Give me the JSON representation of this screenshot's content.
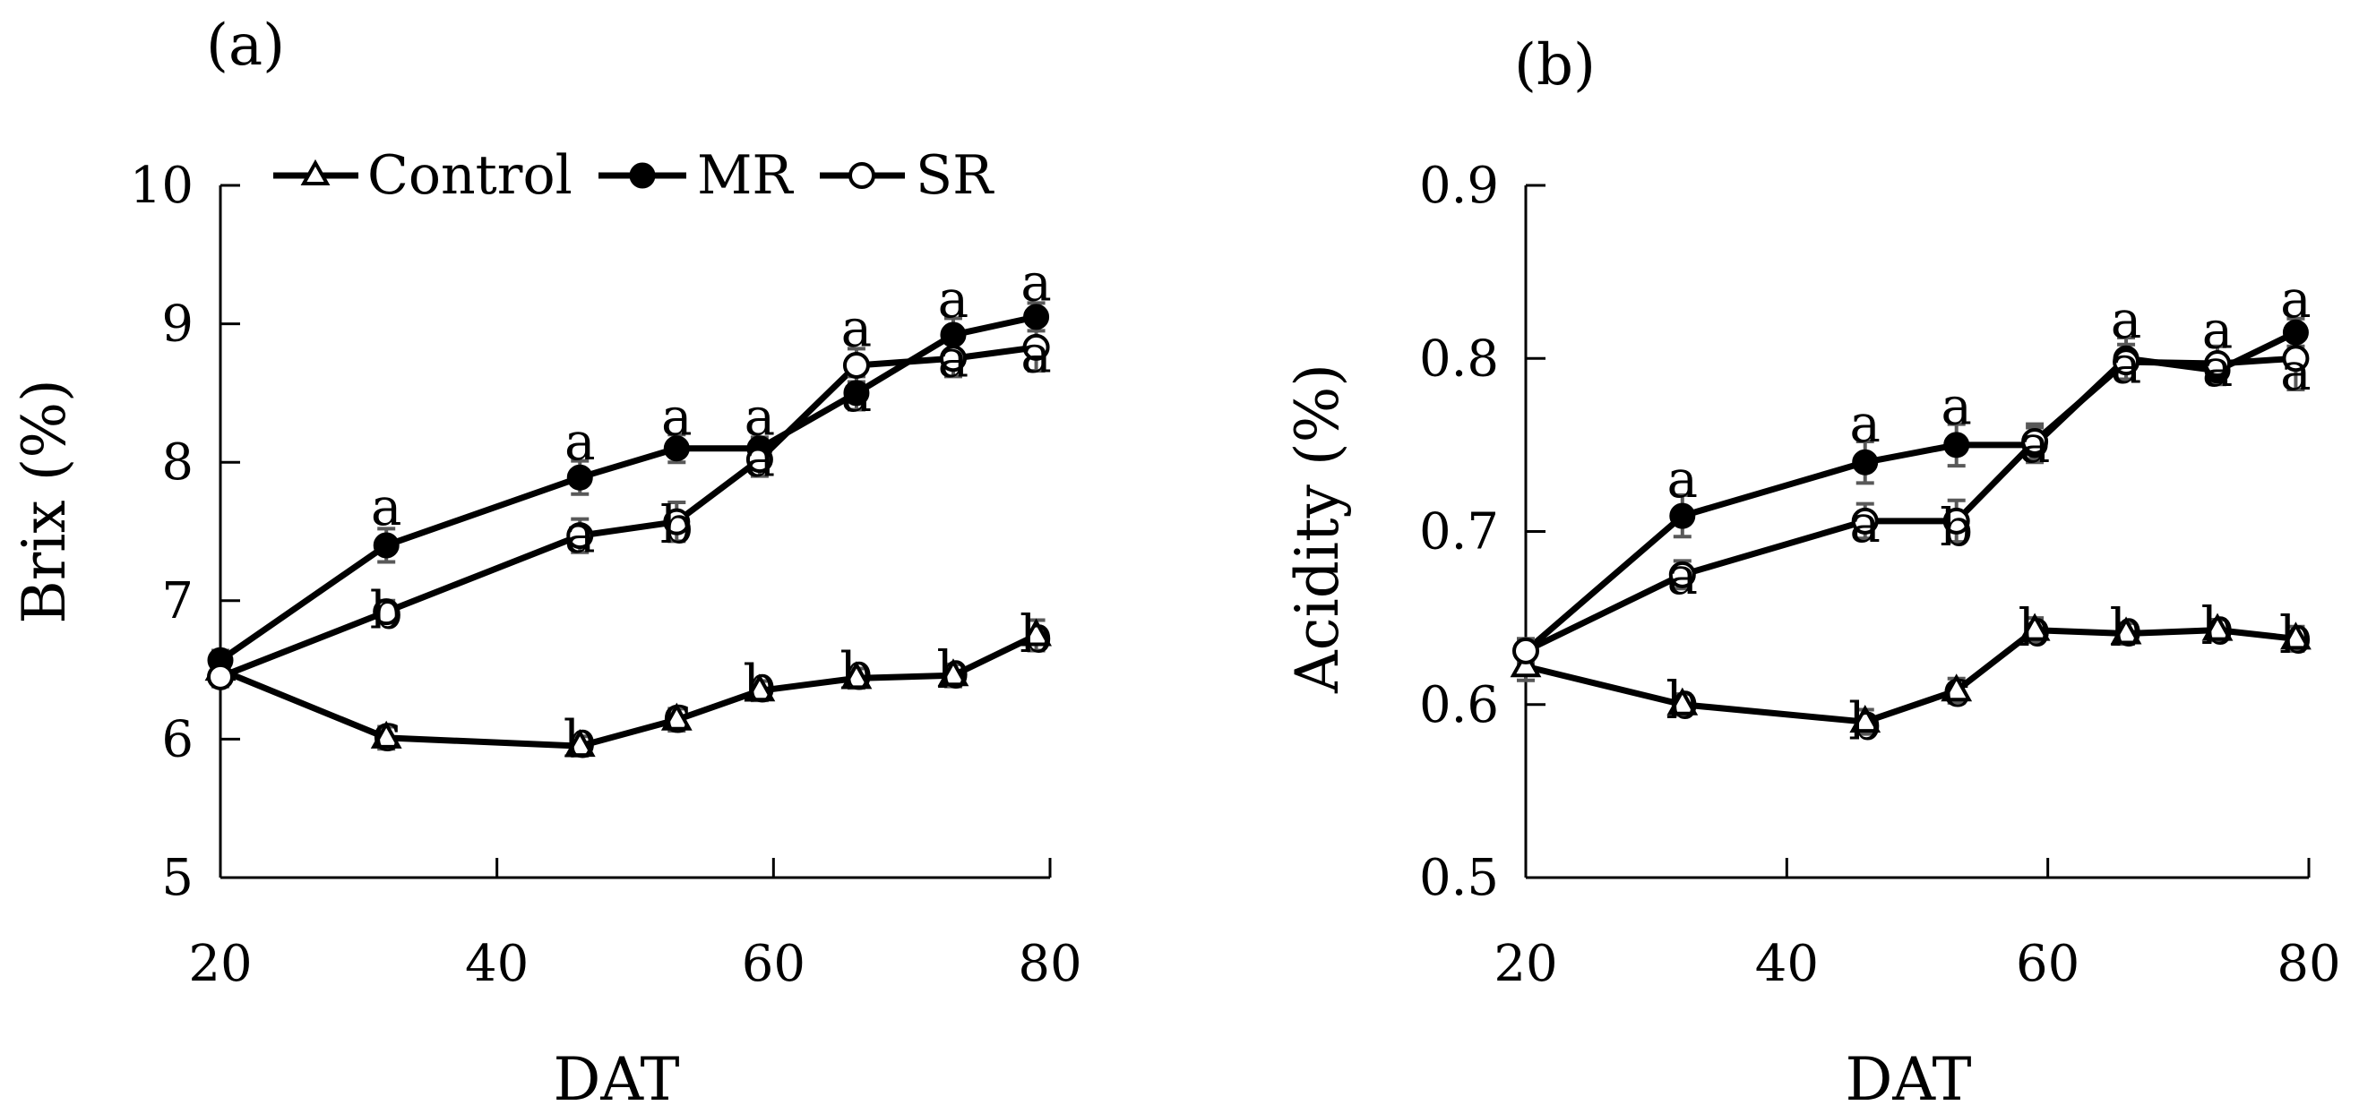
{
  "legend": {
    "entries": [
      {
        "name": "Control",
        "marker": "open-triangle"
      },
      {
        "name": "MR",
        "marker": "filled-circle"
      },
      {
        "name": "SR",
        "marker": "open-circle"
      }
    ]
  },
  "colors": {
    "line": "#000000",
    "error_bar": "#595959",
    "background": "#ffffff"
  },
  "chart_data": [
    {
      "type": "line",
      "panel_label": "(a)",
      "xlabel": "DAT",
      "ylabel": "Brix (%)",
      "xlim": [
        20,
        80
      ],
      "ylim": [
        5,
        10
      ],
      "x_ticks": [
        20,
        40,
        60,
        80
      ],
      "y_ticks": [
        5,
        6,
        7,
        8,
        9,
        10
      ],
      "x_tick_labels": [
        "20",
        "40",
        "60",
        "80"
      ],
      "y_tick_labels": [
        "5",
        "6",
        "7",
        "8",
        "9",
        "10"
      ],
      "series": [
        {
          "name": "Control",
          "x": [
            20,
            32,
            46,
            53,
            59,
            66,
            73,
            79
          ],
          "values": [
            6.5,
            6.01,
            5.95,
            6.14,
            6.35,
            6.44,
            6.46,
            6.75
          ],
          "errors": [
            0.08,
            0.08,
            0.07,
            0.08,
            0.07,
            0.07,
            0.08,
            0.11
          ]
        },
        {
          "name": "MR",
          "x": [
            20,
            32,
            46,
            53,
            59,
            66,
            73,
            79
          ],
          "values": [
            6.57,
            7.4,
            7.89,
            8.1,
            8.1,
            8.5,
            8.92,
            9.05
          ],
          "errors": [
            0.07,
            0.12,
            0.12,
            0.1,
            0.08,
            0.12,
            0.12,
            0.1
          ]
        },
        {
          "name": "SR",
          "x": [
            20,
            32,
            46,
            53,
            59,
            66,
            73,
            79
          ],
          "values": [
            6.45,
            6.92,
            7.47,
            7.57,
            8.02,
            8.7,
            8.75,
            8.83
          ],
          "errors": [
            0.07,
            0.08,
            0.12,
            0.14,
            0.12,
            0.12,
            0.13,
            0.17
          ]
        }
      ],
      "annotations": [
        {
          "x": 32,
          "y": 7.55,
          "text": "a",
          "pos": "above"
        },
        {
          "x": 32,
          "y": 6.8,
          "text": "b",
          "pos": "below"
        },
        {
          "x": 32,
          "y": 5.92,
          "text": "c",
          "pos": "below"
        },
        {
          "x": 46,
          "y": 8.02,
          "text": "a",
          "pos": "above"
        },
        {
          "x": 46,
          "y": 7.35,
          "text": "a",
          "pos": "below"
        },
        {
          "x": 46,
          "y": 5.87,
          "text": "b",
          "pos": "below"
        },
        {
          "x": 53,
          "y": 8.2,
          "text": "a",
          "pos": "above"
        },
        {
          "x": 53,
          "y": 7.42,
          "text": "b",
          "pos": "below"
        },
        {
          "x": 53,
          "y": 6.05,
          "text": "c",
          "pos": "below"
        },
        {
          "x": 59,
          "y": 8.2,
          "text": "a",
          "pos": "above"
        },
        {
          "x": 59,
          "y": 7.9,
          "text": "a",
          "pos": "below"
        },
        {
          "x": 59,
          "y": 6.27,
          "text": "b",
          "pos": "below"
        },
        {
          "x": 66,
          "y": 8.84,
          "text": "a",
          "pos": "above"
        },
        {
          "x": 66,
          "y": 8.37,
          "text": "a",
          "pos": "below"
        },
        {
          "x": 66,
          "y": 6.36,
          "text": "b",
          "pos": "below"
        },
        {
          "x": 73,
          "y": 9.05,
          "text": "a",
          "pos": "above"
        },
        {
          "x": 73,
          "y": 8.62,
          "text": "a",
          "pos": "below"
        },
        {
          "x": 73,
          "y": 6.37,
          "text": "b",
          "pos": "below"
        },
        {
          "x": 79,
          "y": 9.17,
          "text": "a",
          "pos": "above"
        },
        {
          "x": 79,
          "y": 8.65,
          "text": "a",
          "pos": "below"
        },
        {
          "x": 79,
          "y": 6.63,
          "text": "b",
          "pos": "below"
        }
      ]
    },
    {
      "type": "line",
      "panel_label": "(b)",
      "xlabel": "DAT",
      "ylabel": "Acidity (%)",
      "xlim": [
        20,
        80
      ],
      "ylim": [
        0.5,
        0.9
      ],
      "x_ticks": [
        20,
        40,
        60,
        80
      ],
      "y_ticks": [
        0.5,
        0.6,
        0.7,
        0.8,
        0.9
      ],
      "x_tick_labels": [
        "20",
        "40",
        "60",
        "80"
      ],
      "y_tick_labels": [
        "0.5",
        "0.6",
        "0.7",
        "0.8",
        "0.9"
      ],
      "series": [
        {
          "name": "Control",
          "x": [
            20,
            32,
            46,
            53,
            59,
            66,
            73,
            79
          ],
          "values": [
            0.622,
            0.6,
            0.59,
            0.608,
            0.643,
            0.641,
            0.643,
            0.638
          ],
          "errors": [
            0.008,
            0.006,
            0.007,
            0.007,
            0.007,
            0.006,
            0.006,
            0.007
          ]
        },
        {
          "name": "MR",
          "x": [
            20,
            32,
            46,
            53,
            59,
            66,
            73,
            79
          ],
          "values": [
            0.631,
            0.709,
            0.74,
            0.75,
            0.75,
            0.8,
            0.793,
            0.815
          ],
          "errors": [
            0.007,
            0.012,
            0.012,
            0.012,
            0.01,
            0.012,
            0.008,
            0.008
          ]
        },
        {
          "name": "SR",
          "x": [
            20,
            32,
            46,
            53,
            59,
            66,
            73,
            79
          ],
          "values": [
            0.631,
            0.675,
            0.706,
            0.706,
            0.752,
            0.798,
            0.797,
            0.8
          ],
          "errors": [
            0.007,
            0.008,
            0.01,
            0.012,
            0.01,
            0.01,
            0.01,
            0.018
          ]
        }
      ],
      "annotations": [
        {
          "x": 32,
          "y": 0.72,
          "text": "a",
          "pos": "above"
        },
        {
          "x": 32,
          "y": 0.664,
          "text": "a",
          "pos": "below"
        },
        {
          "x": 32,
          "y": 0.592,
          "text": "b",
          "pos": "below"
        },
        {
          "x": 46,
          "y": 0.752,
          "text": "a",
          "pos": "above"
        },
        {
          "x": 46,
          "y": 0.694,
          "text": "a",
          "pos": "below"
        },
        {
          "x": 46,
          "y": 0.58,
          "text": "b",
          "pos": "below"
        },
        {
          "x": 53,
          "y": 0.762,
          "text": "a",
          "pos": "above"
        },
        {
          "x": 53,
          "y": 0.692,
          "text": "b",
          "pos": "below"
        },
        {
          "x": 53,
          "y": 0.599,
          "text": "c",
          "pos": "below"
        },
        {
          "x": 59,
          "y": 0.74,
          "text": "a",
          "pos": "below"
        },
        {
          "x": 59,
          "y": 0.634,
          "text": "b",
          "pos": "below"
        },
        {
          "x": 66,
          "y": 0.812,
          "text": "a",
          "pos": "above"
        },
        {
          "x": 66,
          "y": 0.786,
          "text": "a",
          "pos": "below"
        },
        {
          "x": 66,
          "y": 0.634,
          "text": "b",
          "pos": "below"
        },
        {
          "x": 73,
          "y": 0.806,
          "text": "a",
          "pos": "above"
        },
        {
          "x": 73,
          "y": 0.784,
          "text": "a",
          "pos": "below"
        },
        {
          "x": 73,
          "y": 0.635,
          "text": "b",
          "pos": "below"
        },
        {
          "x": 79,
          "y": 0.824,
          "text": "a",
          "pos": "above"
        },
        {
          "x": 79,
          "y": 0.782,
          "text": "a",
          "pos": "below"
        },
        {
          "x": 79,
          "y": 0.63,
          "text": "b",
          "pos": "below"
        }
      ]
    }
  ]
}
